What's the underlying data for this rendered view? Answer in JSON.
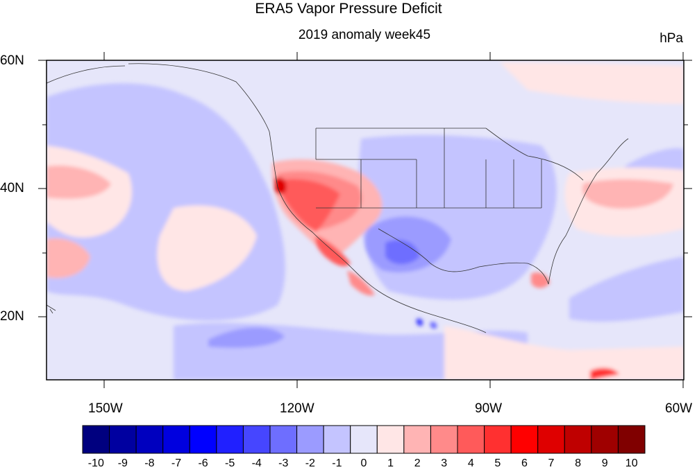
{
  "title": "ERA5 Vapor Pressure Deficit",
  "subtitle": "2019 anomaly week45",
  "units": "hPa",
  "map": {
    "lat_labels": [
      "60N",
      "40N",
      "20N"
    ],
    "lon_labels": [
      "150W",
      "120W",
      "90W",
      "60W"
    ],
    "lon_range": [
      -159,
      -60
    ],
    "lat_range": [
      10,
      60
    ],
    "ocean_base_color": "#e6e6fa"
  },
  "colorbar": {
    "labels": [
      "-10",
      "-9",
      "-8",
      "-7",
      "-6",
      "-5",
      "-4",
      "-3",
      "-2",
      "-1",
      "0",
      "1",
      "2",
      "3",
      "4",
      "5",
      "6",
      "7",
      "8",
      "9",
      "10"
    ],
    "colors": [
      "#00007f",
      "#0000a0",
      "#0000bf",
      "#0000df",
      "#0000ff",
      "#2020ff",
      "#4646ff",
      "#6e6eff",
      "#9b9bff",
      "#c4c4ff",
      "#e6e6fa",
      "#ffe6e6",
      "#ffb4b4",
      "#ff8a8a",
      "#ff5a5a",
      "#ff3030",
      "#ff0000",
      "#df0000",
      "#bf0000",
      "#9f0000",
      "#800000"
    ]
  }
}
